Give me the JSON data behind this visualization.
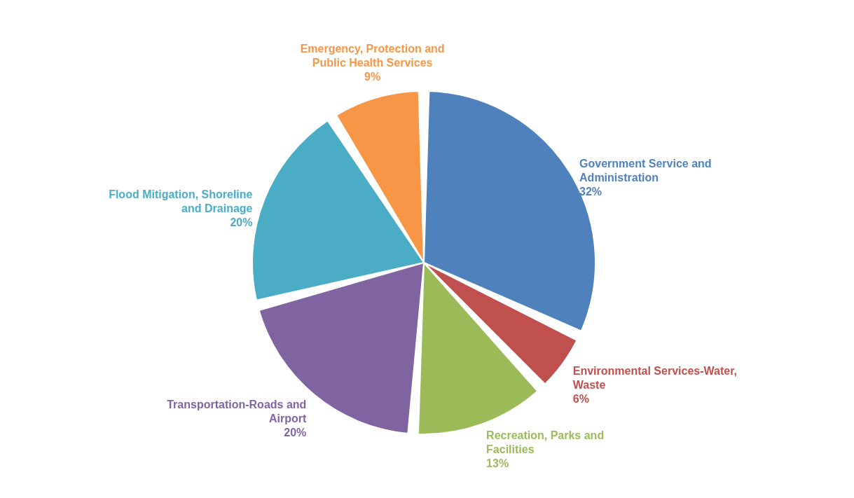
{
  "chart_data": {
    "type": "pie",
    "categories": [
      "Government Service and Administration",
      "Environmental Services-Water, Waste",
      "Recreation, Parks and Facilities",
      "Transportation-Roads  and Airport",
      "Flood Mitigation, Shoreline and Drainage",
      "Emergency, Protection and Public Health Services"
    ],
    "values": [
      32,
      6,
      13,
      20,
      20,
      9
    ],
    "value_labels": [
      "32%",
      "6%",
      "13%",
      "20%",
      "20%",
      "9%"
    ],
    "colors": [
      "#4f81bd",
      "#c0504d",
      "#9bbb59",
      "#8064a2",
      "#4bacc6",
      "#f79646"
    ],
    "legend": false
  }
}
